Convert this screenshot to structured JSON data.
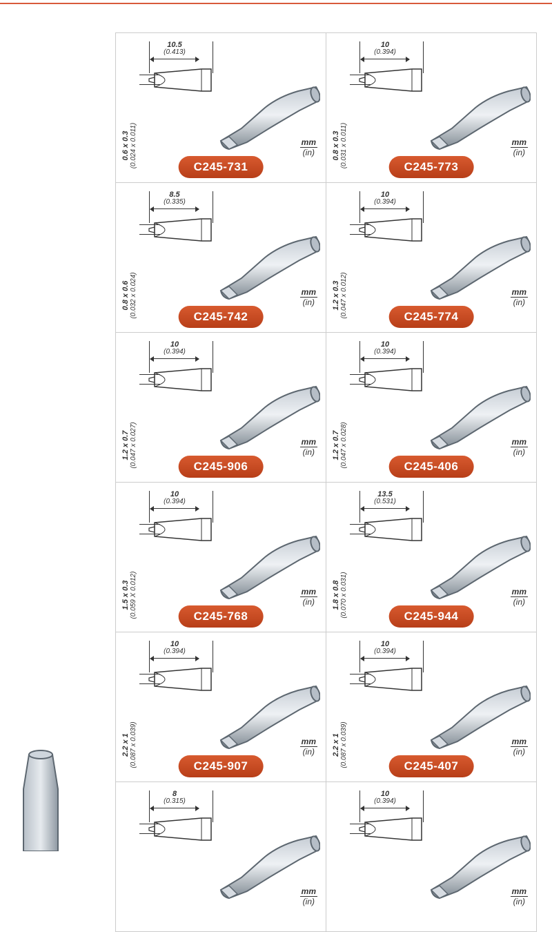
{
  "unit_label": {
    "mm": "mm",
    "in": "(in)"
  },
  "colors": {
    "badge_bg_top": "#d85a2f",
    "badge_bg_bot": "#b83e18",
    "badge_text": "#ffffff",
    "divider": "#d85a3a",
    "cell_border": "#cccccc",
    "dim_text": "#333333",
    "tip_fill": "#9aa3ac",
    "tip_stroke": "#5d6770"
  },
  "products": [
    {
      "code": "C245-731",
      "len_mm": "10.5",
      "len_in": "(0.413)",
      "wh_mm": "0.6 x 0.3",
      "wh_in": "(0.024 x 0.011)"
    },
    {
      "code": "C245-773",
      "len_mm": "10",
      "len_in": "(0.394)",
      "wh_mm": "0.8 x 0.3",
      "wh_in": "(0.031 x 0.011)"
    },
    {
      "code": "C245-742",
      "len_mm": "8.5",
      "len_in": "(0.335)",
      "wh_mm": "0.8 x 0.6",
      "wh_in": "(0.032 x 0.024)"
    },
    {
      "code": "C245-774",
      "len_mm": "10",
      "len_in": "(0.394)",
      "wh_mm": "1.2 x 0.3",
      "wh_in": "(0.047 x 0.012)"
    },
    {
      "code": "C245-906",
      "len_mm": "10",
      "len_in": "(0.394)",
      "wh_mm": "1.2 x 0.7",
      "wh_in": "(0.047 x 0.027)"
    },
    {
      "code": "C245-406",
      "len_mm": "10",
      "len_in": "(0.394)",
      "wh_mm": "1.2 x 0.7",
      "wh_in": "(0.047 x 0.028)"
    },
    {
      "code": "C245-768",
      "len_mm": "10",
      "len_in": "(0.394)",
      "wh_mm": "1.5 x 0.3",
      "wh_in": "(0.059 X 0.012)"
    },
    {
      "code": "C245-944",
      "len_mm": "13.5",
      "len_in": "(0.531)",
      "wh_mm": "1.8 x 0.8",
      "wh_in": "(0.070 x 0.031)"
    },
    {
      "code": "C245-907",
      "len_mm": "10",
      "len_in": "(0.394)",
      "wh_mm": "2.2 x 1",
      "wh_in": "(0.087 x 0.039)"
    },
    {
      "code": "C245-407",
      "len_mm": "10",
      "len_in": "(0.394)",
      "wh_mm": "2.2 x 1",
      "wh_in": "(0.087 x 0.039)"
    },
    {
      "code": "",
      "len_mm": "8",
      "len_in": "(0.315)",
      "wh_mm": "",
      "wh_in": ""
    },
    {
      "code": "",
      "len_mm": "10",
      "len_in": "(0.394)",
      "wh_mm": "",
      "wh_in": ""
    }
  ]
}
